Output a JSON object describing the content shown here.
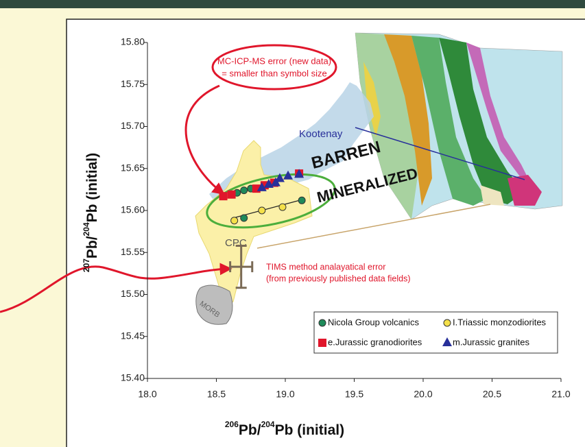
{
  "chart_data": {
    "type": "scatter",
    "x_label": [
      "206",
      "Pb/",
      "204",
      "Pb (initial)"
    ],
    "y_label": [
      "207",
      "Pb/",
      "204",
      "Pb (initial)"
    ],
    "xlim": [
      18.0,
      21.0
    ],
    "ylim": [
      15.4,
      15.8
    ],
    "xticks": [
      {
        "value": 18,
        "label": "18.0"
      },
      18.5,
      {
        "value": 19,
        "label": "19.0"
      },
      19.5,
      {
        "value": 20,
        "label": "20.0"
      },
      20.5,
      {
        "value": 21,
        "label": "21.0"
      }
    ],
    "yticks": [
      {
        "value": 15.4,
        "label": "15.40"
      },
      15.45,
      {
        "value": 15.5,
        "label": "15.50"
      },
      15.55,
      {
        "value": 15.6,
        "label": "15.60"
      },
      15.65,
      {
        "value": 15.7,
        "label": "15.70"
      },
      15.75,
      {
        "value": 15.8,
        "label": "15.80"
      }
    ],
    "series": [
      {
        "name": "Nicola Group volcanics",
        "marker": "circle",
        "color": "#1e8a5a",
        "x": [
          18.65,
          18.7,
          18.75,
          18.7,
          19.12
        ],
        "y": [
          15.621,
          15.624,
          15.626,
          15.591,
          15.612
        ]
      },
      {
        "name": "I.Triassic monzodiorites",
        "marker": "circle",
        "color": "#f4e04a",
        "x": [
          18.63,
          18.83,
          18.98
        ],
        "y": [
          15.588,
          15.6,
          15.604
        ]
      },
      {
        "name": "e.Jurassic granodiorites",
        "marker": "square",
        "color": "#e0162b",
        "x": [
          18.55,
          18.61,
          18.79,
          18.85,
          18.92,
          19.1
        ],
        "y": [
          15.617,
          15.619,
          15.626,
          15.63,
          15.633,
          15.644
        ]
      },
      {
        "name": "m.Jurassic granites",
        "marker": "triangle",
        "color": "#28309a",
        "x": [
          18.83,
          18.88,
          18.93,
          18.96,
          19.02,
          19.1
        ],
        "y": [
          15.627,
          15.631,
          15.633,
          15.638,
          15.641,
          15.643
        ]
      }
    ],
    "error_bar": {
      "x": 18.68,
      "y": 15.533,
      "xerr": 0.08,
      "yerr": 0.025,
      "color": "#7a6a55"
    },
    "annotations": {
      "mc_icp": [
        "MC-ICP-MS error (new data)",
        "= smaller than symbol size"
      ],
      "kootenay": "Kootenay",
      "barren": "BARREN",
      "mineralized": "MINERALIZED",
      "cpc": "CPC",
      "tims": [
        "TIMS method analayatical error",
        "(from previously published data fields)"
      ],
      "morb": "MORB"
    }
  }
}
